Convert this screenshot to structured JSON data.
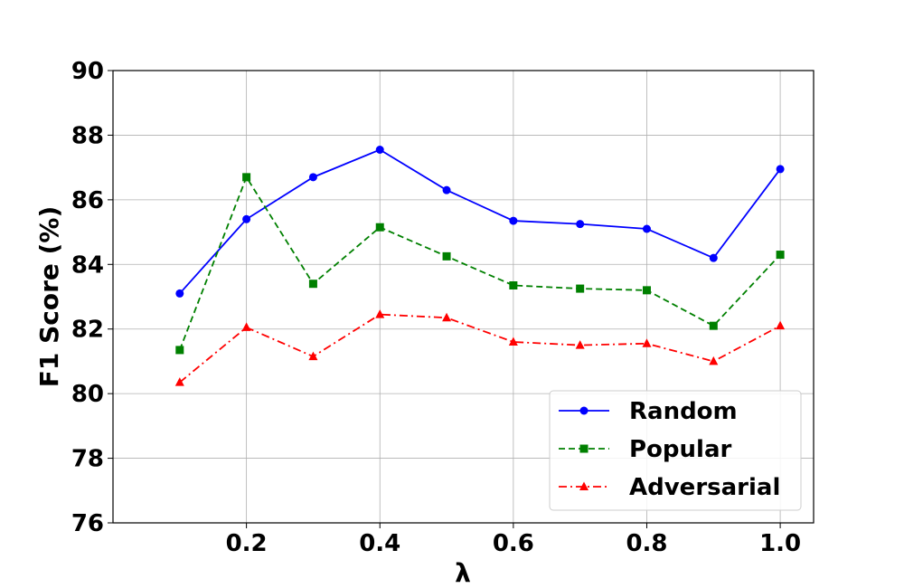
{
  "chart_data": {
    "type": "line",
    "xlabel": "λ",
    "ylabel": "F1 Score (%)",
    "xlim": [
      0.0,
      1.05
    ],
    "ylim": [
      76,
      90
    ],
    "x_ticks": [
      0.2,
      0.4,
      0.6,
      0.8,
      1.0
    ],
    "x_tick_labels": [
      "0.2",
      "0.4",
      "0.6",
      "0.8",
      "1.0"
    ],
    "y_ticks": [
      76,
      78,
      80,
      82,
      84,
      86,
      88,
      90
    ],
    "y_tick_labels": [
      "76",
      "78",
      "80",
      "82",
      "84",
      "86",
      "88",
      "90"
    ],
    "grid": true,
    "legend_position": "lower-right",
    "x": [
      0.1,
      0.2,
      0.3,
      0.4,
      0.5,
      0.6,
      0.7,
      0.8,
      0.9,
      1.0
    ],
    "series": [
      {
        "name": "Random",
        "color": "#0000ff",
        "line_style": "solid",
        "marker": "circle",
        "values": [
          83.1,
          85.4,
          86.7,
          87.55,
          86.3,
          85.35,
          85.25,
          85.1,
          84.2,
          86.95
        ]
      },
      {
        "name": "Popular",
        "color": "#008000",
        "line_style": "dashed",
        "marker": "square",
        "values": [
          81.35,
          86.7,
          83.4,
          85.15,
          84.25,
          83.35,
          83.25,
          83.2,
          82.1,
          84.3
        ]
      },
      {
        "name": "Adversarial",
        "color": "#ff0000",
        "line_style": "dashdot",
        "marker": "triangle",
        "values": [
          80.35,
          82.05,
          81.15,
          82.45,
          82.35,
          81.6,
          81.5,
          81.55,
          81.0,
          82.1
        ]
      }
    ]
  }
}
